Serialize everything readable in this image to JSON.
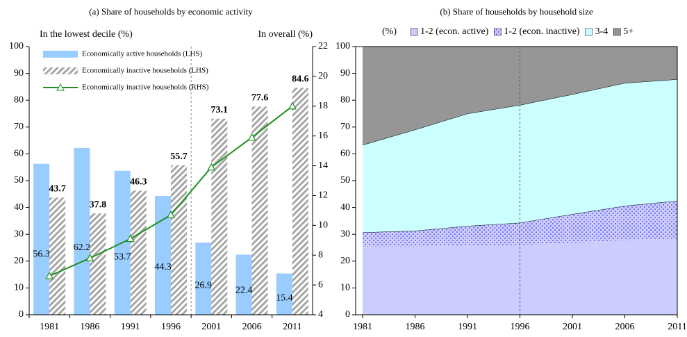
{
  "chart_data": [
    {
      "type": "bar",
      "title": "(a) Share of households by economic activity",
      "y_label": "In the lowest decile (%)",
      "y2_label": "In overall (%)",
      "categories": [
        "1981",
        "1986",
        "1991",
        "1996",
        "2001",
        "2006",
        "2011"
      ],
      "series": [
        {
          "name": "Economically active households (LHS)",
          "type": "bar",
          "color": "#99ccff",
          "values": [
            56.3,
            62.2,
            53.7,
            44.3,
            26.9,
            22.4,
            15.4
          ]
        },
        {
          "name": "Economically inactive households (LHS)",
          "type": "bar",
          "color": "#a6a6a6",
          "pattern": "diagonal",
          "values": [
            43.7,
            37.8,
            46.3,
            55.7,
            73.1,
            77.6,
            84.6
          ]
        },
        {
          "name": "Economically inactive households (RHS)",
          "type": "line",
          "color": "#1f8f1f",
          "marker": "triangle",
          "axis": "y2",
          "values": [
            6.6,
            7.8,
            9.1,
            10.7,
            13.9,
            15.9,
            18.0
          ]
        }
      ],
      "ylim": [
        0,
        100
      ],
      "yticks": [
        0,
        10,
        20,
        30,
        40,
        50,
        60,
        70,
        80,
        90,
        100
      ],
      "y2lim": [
        4,
        22
      ],
      "y2ticks": [
        4,
        6,
        8,
        10,
        12,
        14,
        16,
        18,
        20,
        22
      ],
      "legend": "upper left"
    },
    {
      "type": "area",
      "stacked": true,
      "title": "(b) Share of households by household size",
      "y_label": "(%)",
      "categories": [
        "1981",
        "1986",
        "1991",
        "1996",
        "2001",
        "2006",
        "2011"
      ],
      "series": [
        {
          "name": "1-2 (econ. active)",
          "color": "#ccccff",
          "values": [
            25.5,
            25.5,
            25.8,
            26.0,
            26.8,
            27.8,
            28.3
          ]
        },
        {
          "name": "1-2 (econ. inactive)",
          "color": "#ccccff",
          "pattern": "dots",
          "values": [
            5.2,
            5.8,
            7.3,
            8.3,
            10.7,
            12.8,
            14.2
          ]
        },
        {
          "name": "3-4",
          "color": "#ccffff",
          "values": [
            32.6,
            37.7,
            41.9,
            43.9,
            44.7,
            45.8,
            45.3
          ]
        },
        {
          "name": "5+",
          "color": "#969696",
          "values": [
            36.7,
            31.0,
            25.0,
            21.8,
            17.8,
            13.6,
            12.2
          ]
        }
      ],
      "ylim": [
        0,
        100
      ],
      "yticks": [
        0,
        10,
        20,
        30,
        40,
        50,
        60,
        70,
        80,
        90,
        100
      ],
      "legend": "top"
    }
  ]
}
